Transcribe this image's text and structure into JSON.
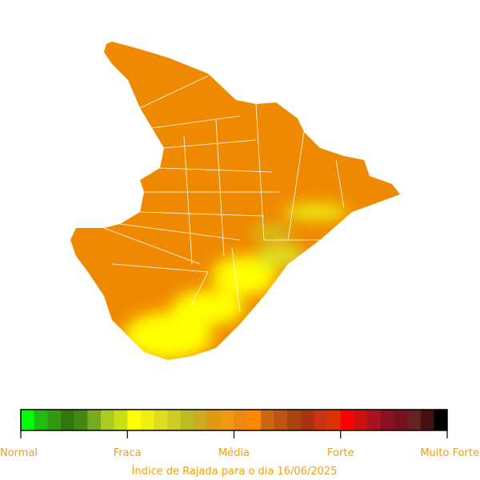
{
  "legend": {
    "labels": [
      "Normal",
      "Fraca",
      "Média",
      "Forte",
      "Muito Forte"
    ],
    "colors": [
      "#00ff00",
      "#22bb11",
      "#339911",
      "#337711",
      "#448811",
      "#77aa22",
      "#aacc22",
      "#ccdd11",
      "#ffff00",
      "#eeee11",
      "#dddd22",
      "#cccc22",
      "#bbbb22",
      "#ccaa22",
      "#dd9911",
      "#ee9911",
      "#ee8811",
      "#ff8800",
      "#cc6611",
      "#bb5511",
      "#aa4411",
      "#aa3311",
      "#cc3311",
      "#dd3300",
      "#ff0000",
      "#cc1111",
      "#aa1122",
      "#881122",
      "#771122",
      "#662222",
      "#441111",
      "#000000"
    ]
  },
  "caption": "Índice de Rajada para o dia 16/06/2025"
}
